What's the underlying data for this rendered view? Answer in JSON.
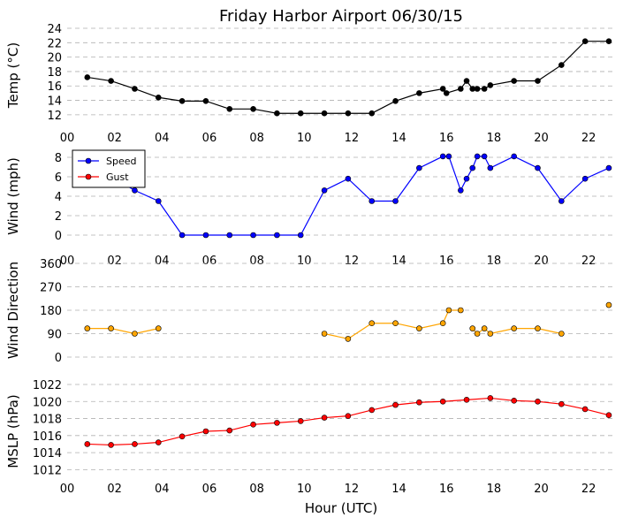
{
  "title": "Friday Harbor Airport 06/30/15",
  "xlabel": "Hour (UTC)",
  "x_ticks": [
    "00",
    "02",
    "04",
    "06",
    "08",
    "10",
    "12",
    "14",
    "16",
    "18",
    "20",
    "22"
  ],
  "colors": {
    "temp": "#000000",
    "speed": "#0000ff",
    "gust": "#ff0000",
    "direction": "#ffa500",
    "mslp": "#ff0000",
    "grid": "#b0b0b0"
  },
  "chart_data": [
    {
      "type": "line",
      "ylabel": "Temp (°C)",
      "xlim": [
        0,
        23
      ],
      "ylim": [
        11,
        24
      ],
      "yticks": [
        "12",
        "14",
        "16",
        "18",
        "20",
        "22",
        "24"
      ],
      "grid": "horizontal dashed",
      "series": [
        {
          "color": "#000000",
          "x": [
            0.85,
            1.85,
            2.85,
            3.85,
            4.85,
            5.85,
            6.85,
            7.85,
            8.85,
            9.85,
            10.85,
            11.85,
            12.85,
            13.85,
            14.85,
            15.85,
            16.0,
            16.6,
            16.85,
            17.1,
            17.3,
            17.6,
            17.85,
            18.85,
            19.85,
            20.85,
            21.85,
            22.85
          ],
          "values": [
            17.2,
            16.7,
            15.6,
            14.4,
            13.9,
            13.9,
            12.8,
            12.8,
            12.2,
            12.2,
            12.2,
            12.2,
            12.2,
            13.9,
            15.0,
            15.6,
            15.0,
            15.6,
            16.7,
            15.6,
            15.6,
            15.6,
            16.1,
            16.7,
            16.7,
            18.9,
            22.2,
            22.2
          ]
        }
      ]
    },
    {
      "type": "line",
      "ylabel": "Wind (mph)",
      "xlim": [
        0,
        23
      ],
      "ylim": [
        -1,
        9
      ],
      "yticks": [
        "0",
        "2",
        "4",
        "6",
        "8"
      ],
      "legend": "top-left",
      "grid": "horizontal dashed",
      "series": [
        {
          "name": "Speed",
          "color": "#0000ff",
          "x": [
            0.85,
            1.85,
            2.85,
            3.85,
            4.85,
            5.85,
            6.85,
            7.85,
            8.85,
            9.85,
            10.85,
            11.85,
            12.85,
            13.85,
            14.85,
            15.85,
            16.1,
            16.6,
            16.85,
            17.1,
            17.3,
            17.6,
            17.85,
            18.85,
            19.85,
            20.85,
            21.85,
            22.85
          ],
          "values": [
            7.0,
            6.0,
            4.6,
            3.5,
            0,
            0,
            0,
            0,
            0,
            0,
            4.6,
            5.8,
            3.5,
            3.5,
            6.9,
            8.1,
            8.1,
            4.6,
            5.8,
            6.9,
            8.1,
            8.1,
            6.9,
            8.1,
            6.9,
            3.5,
            5.8,
            6.9
          ]
        },
        {
          "name": "Gust",
          "color": "#ff0000",
          "x": [],
          "values": []
        }
      ]
    },
    {
      "type": "scatter",
      "ylabel": "Wind Direction",
      "xlim": [
        0,
        23
      ],
      "ylim": [
        0,
        360
      ],
      "yticks": [
        "0",
        "90",
        "180",
        "270",
        "360"
      ],
      "grid": "horizontal dashed",
      "series": [
        {
          "color": "#ffa500",
          "segments": [
            {
              "x": [
                0.85,
                1.85,
                2.85,
                3.85
              ],
              "values": [
                110,
                110,
                90,
                110
              ]
            },
            {
              "x": [
                10.85,
                11.85,
                12.85,
                13.85,
                14.85,
                15.85,
                16.1,
                16.6
              ],
              "values": [
                90,
                70,
                130,
                130,
                110,
                130,
                180,
                180
              ]
            },
            {
              "x": [
                17.1,
                17.3,
                17.6,
                17.85,
                18.85,
                19.85,
                20.85
              ],
              "values": [
                110,
                90,
                110,
                90,
                110,
                110,
                90
              ]
            },
            {
              "x": [
                22.85
              ],
              "values": [
                200
              ]
            }
          ]
        }
      ]
    },
    {
      "type": "line",
      "ylabel": "MSLP (hPa)",
      "xlim": [
        0,
        23
      ],
      "ylim": [
        1011,
        1022
      ],
      "yticks": [
        "1012",
        "1014",
        "1016",
        "1018",
        "1020",
        "1022"
      ],
      "grid": "horizontal dashed",
      "series": [
        {
          "color": "#ff0000",
          "x": [
            0.85,
            1.85,
            2.85,
            3.85,
            4.85,
            5.85,
            6.85,
            7.85,
            8.85,
            9.85,
            10.85,
            11.85,
            12.85,
            13.85,
            14.85,
            15.85,
            16.85,
            17.85,
            18.85,
            19.85,
            20.85,
            21.85,
            22.85
          ],
          "values": [
            1015.0,
            1014.9,
            1015.0,
            1015.2,
            1015.9,
            1016.5,
            1016.6,
            1017.3,
            1017.5,
            1017.7,
            1018.1,
            1018.3,
            1019.0,
            1019.6,
            1019.9,
            1020.0,
            1020.2,
            1020.4,
            1020.1,
            1020.0,
            1019.7,
            1019.1,
            1018.4
          ]
        }
      ]
    }
  ]
}
